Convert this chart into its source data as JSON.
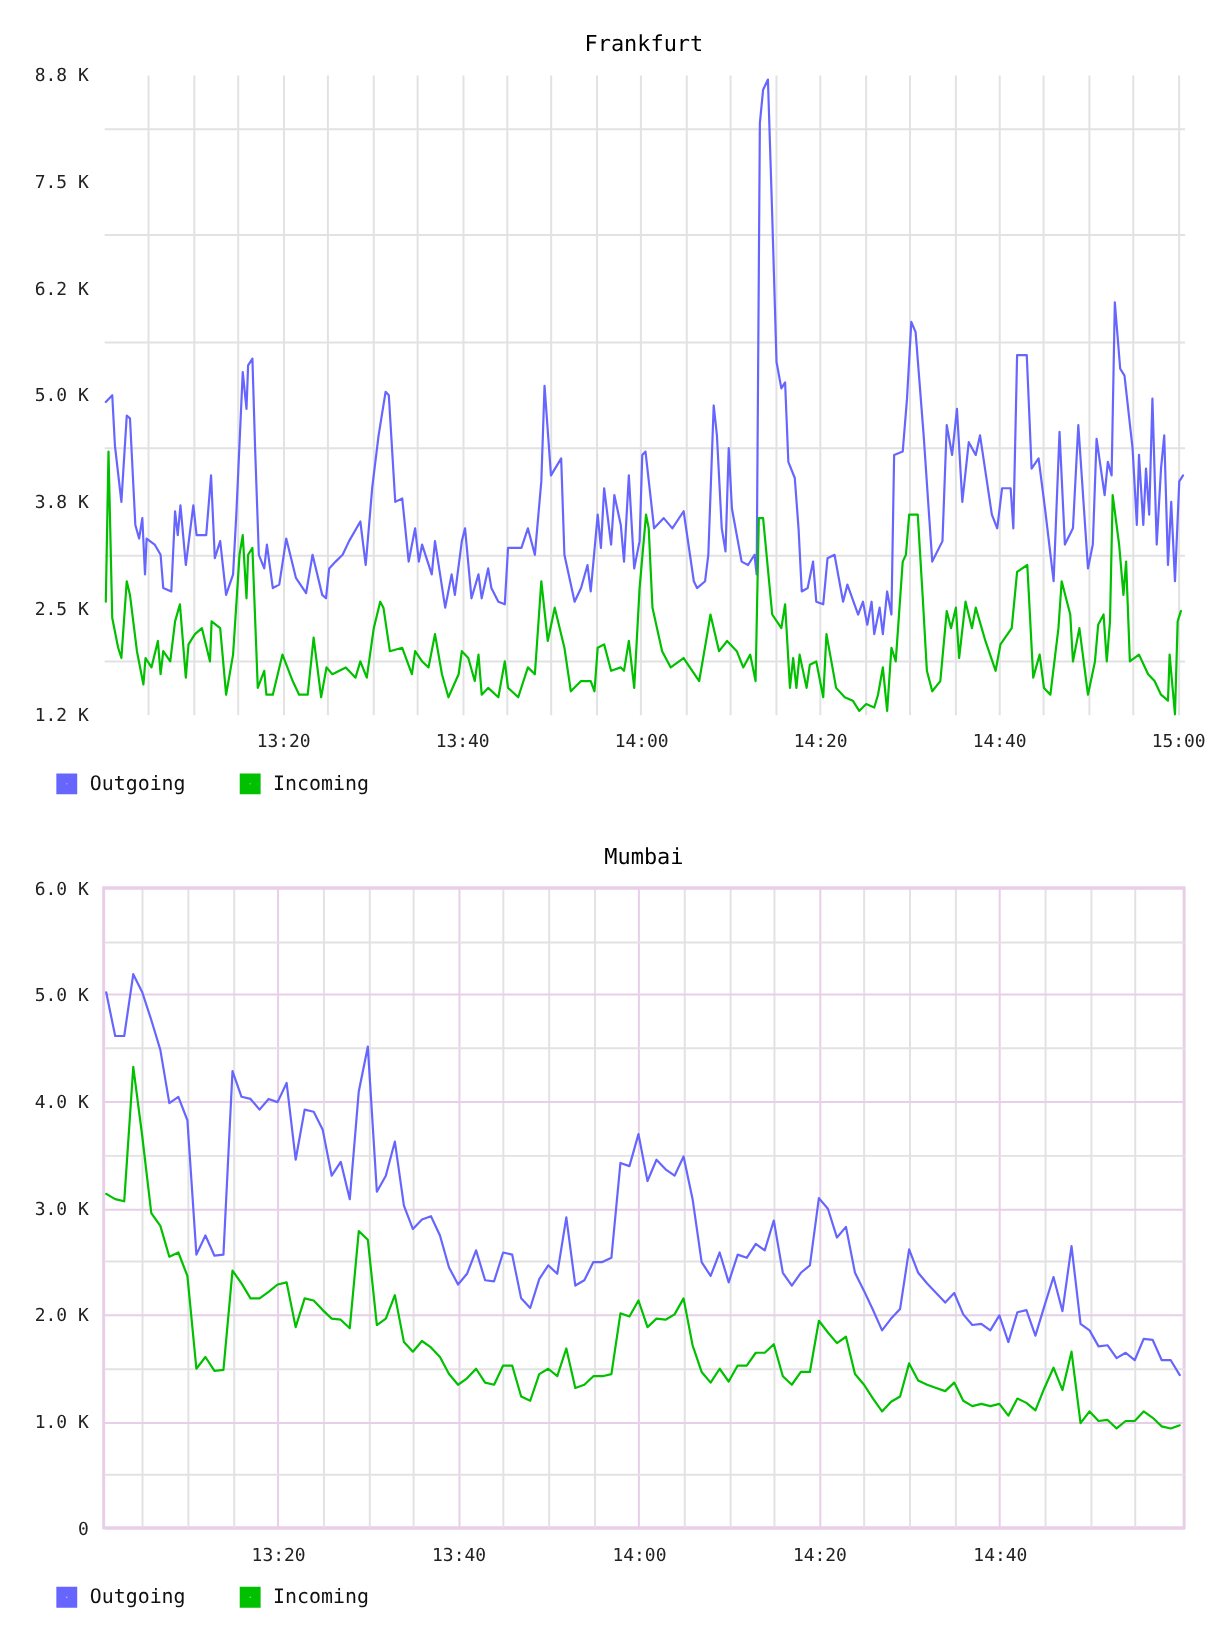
{
  "chart_data": [
    {
      "type": "line",
      "title": "Frankfurt",
      "grid": true,
      "legend": "bottom left",
      "xlim": [
        13.0,
        15.012
      ],
      "ylim": [
        1250,
        8750
      ],
      "xticks": [
        {
          "value": 13.0833,
          "label": null
        },
        {
          "value": 13.1667,
          "label": null
        },
        {
          "value": 13.25,
          "label": null
        },
        {
          "value": 13.3333,
          "label": "13:20"
        },
        {
          "value": 13.4167,
          "label": null
        },
        {
          "value": 13.5,
          "label": null
        },
        {
          "value": 13.5833,
          "label": null
        },
        {
          "value": 13.6667,
          "label": "13:40"
        },
        {
          "value": 13.75,
          "label": null
        },
        {
          "value": 13.8333,
          "label": null
        },
        {
          "value": 13.9167,
          "label": null
        },
        {
          "value": 14,
          "label": "14:00"
        },
        {
          "value": 14.0833,
          "label": null
        },
        {
          "value": 14.1667,
          "label": null
        },
        {
          "value": 14.25,
          "label": null
        },
        {
          "value": 14.3333,
          "label": "14:20"
        },
        {
          "value": 14.4167,
          "label": null
        },
        {
          "value": 14.5,
          "label": null
        },
        {
          "value": 14.5833,
          "label": null
        },
        {
          "value": 14.6667,
          "label": "14:40"
        },
        {
          "value": 14.75,
          "label": null
        },
        {
          "value": 14.8333,
          "label": null
        },
        {
          "value": 14.9167,
          "label": null
        },
        {
          "value": 15,
          "label": "15:00"
        }
      ],
      "yticks": [
        {
          "value": 1250,
          "label": "1.2 K"
        },
        {
          "value": 1875,
          "label": null
        },
        {
          "value": 2500,
          "label": "2.5 K"
        },
        {
          "value": 3125,
          "label": null
        },
        {
          "value": 3750,
          "label": "3.8 K"
        },
        {
          "value": 4375,
          "label": null
        },
        {
          "value": 5000,
          "label": "5.0 K"
        },
        {
          "value": 5625,
          "label": null
        },
        {
          "value": 6250,
          "label": "6.2 K"
        },
        {
          "value": 6875,
          "label": null
        },
        {
          "value": 7500,
          "label": "7.5 K"
        },
        {
          "value": 8125,
          "label": null
        },
        {
          "value": 8750,
          "label": "8.8 K"
        }
      ],
      "series": [
        {
          "name": "Outgoing",
          "color": "#6666ff",
          "x": [
            13.004,
            13.016,
            13.021,
            13.033,
            13.043,
            13.049,
            13.059,
            13.066,
            13.072,
            13.077,
            13.08,
            13.095,
            13.106,
            13.111,
            13.126,
            13.133,
            13.138,
            13.143,
            13.153,
            13.167,
            13.173,
            13.191,
            13.2,
            13.207,
            13.217,
            13.228,
            13.241,
            13.247,
            13.259,
            13.266,
            13.269,
            13.277,
            13.282,
            13.289,
            13.299,
            13.304,
            13.315,
            13.327,
            13.34,
            13.358,
            13.377,
            13.389,
            13.407,
            13.414,
            13.42,
            13.432,
            13.445,
            13.457,
            13.478,
            13.488,
            13.5,
            13.512,
            13.525,
            13.531,
            13.543,
            13.556,
            13.568,
            13.58,
            13.587,
            13.593,
            13.611,
            13.617,
            13.636,
            13.648,
            13.654,
            13.667,
            13.673,
            13.685,
            13.698,
            13.704,
            13.716,
            13.722,
            13.735,
            13.747,
            13.753,
            13.778,
            13.79,
            13.803,
            13.815,
            13.821,
            13.833,
            13.852,
            13.858,
            13.877,
            13.889,
            13.901,
            13.907,
            13.92,
            13.926,
            13.932,
            13.945,
            13.951,
            13.963,
            13.969,
            13.978,
            13.988,
            13.998,
            14.003,
            14.009,
            14.025,
            14.043,
            14.059,
            14.08,
            14.099,
            14.105,
            14.12,
            14.126,
            14.136,
            14.142,
            14.151,
            14.158,
            14.164,
            14.17,
            14.188,
            14.2,
            14.212,
            14.216,
            14.222,
            14.228,
            14.237,
            14.245,
            14.253,
            14.262,
            14.269,
            14.275,
            14.287,
            14.294,
            14.3,
            14.311,
            14.321,
            14.327,
            14.34,
            14.348,
            14.361,
            14.377,
            14.385,
            14.405,
            14.414,
            14.422,
            14.43,
            14.435,
            14.445,
            14.451,
            14.459,
            14.467,
            14.472,
            14.488,
            14.496,
            14.504,
            14.512,
            14.527,
            14.537,
            14.543,
            14.562,
            14.57,
            14.58,
            14.589,
            14.599,
            14.611,
            14.624,
            14.632,
            14.654,
            14.664,
            14.673,
            14.689,
            14.694,
            14.701,
            14.719,
            14.728,
            14.741,
            14.753,
            14.769,
            14.78,
            14.79,
            14.805,
            14.815,
            14.833,
            14.842,
            14.849,
            14.864,
            14.87,
            14.877,
            14.883,
            14.893,
            14.901,
            14.916,
            14.924,
            14.928,
            14.936,
            14.941,
            14.947,
            14.953,
            14.961,
            14.969,
            14.975,
            14.982,
            14.988,
            14.995,
            15.003,
            15.01
          ],
          "values": [
            4910,
            4990,
            4400,
            3740,
            4750,
            4720,
            3470,
            3310,
            3550,
            2890,
            3310,
            3240,
            3120,
            2730,
            2690,
            3630,
            3350,
            3700,
            3000,
            3700,
            3350,
            3350,
            4050,
            3080,
            3280,
            2650,
            2890,
            3590,
            5260,
            4830,
            5340,
            5420,
            4370,
            3120,
            2960,
            3240,
            2730,
            2770,
            3310,
            2850,
            2670,
            3120,
            2650,
            2610,
            2960,
            3040,
            3120,
            3280,
            3510,
            3000,
            3900,
            4520,
            5030,
            4990,
            3740,
            3780,
            3040,
            3430,
            3040,
            3240,
            2890,
            3280,
            2500,
            2890,
            2650,
            3280,
            3430,
            2610,
            2890,
            2610,
            2960,
            2730,
            2570,
            2540,
            3200,
            3200,
            3430,
            3120,
            3980,
            5100,
            4050,
            4250,
            3120,
            2570,
            2730,
            3000,
            2690,
            3590,
            3200,
            3900,
            3240,
            3820,
            3470,
            3040,
            4050,
            2960,
            3280,
            4290,
            4330,
            3430,
            3550,
            3430,
            3630,
            2810,
            2730,
            2810,
            3120,
            4870,
            4520,
            3430,
            3160,
            4370,
            3660,
            3040,
            3000,
            3120,
            2890,
            8180,
            8570,
            8690,
            7090,
            5380,
            5070,
            5140,
            4210,
            4020,
            3430,
            2690,
            2730,
            3040,
            2570,
            2540,
            3080,
            3120,
            2570,
            2770,
            2420,
            2570,
            2300,
            2570,
            2190,
            2500,
            2190,
            2690,
            2420,
            4290,
            4330,
            4950,
            5850,
            5730,
            4520,
            3590,
            3040,
            3280,
            4640,
            4290,
            4830,
            3740,
            4440,
            4290,
            4520,
            3590,
            3430,
            3900,
            3900,
            3430,
            5460,
            5460,
            4130,
            4250,
            3660,
            2810,
            4560,
            3240,
            3430,
            4640,
            2960,
            3240,
            4480,
            3820,
            4210,
            4050,
            6080,
            5300,
            5220,
            4370,
            3470,
            4290,
            3470,
            4130,
            3590,
            4950,
            3240,
            4130,
            4520,
            3000,
            3740,
            2810,
            3980,
            4050
          ]
        },
        {
          "name": "Incoming",
          "color": "#00c000",
          "x": [
            13.004,
            13.009,
            13.016,
            13.027,
            13.033,
            13.043,
            13.049,
            13.062,
            13.074,
            13.078,
            13.089,
            13.101,
            13.106,
            13.111,
            13.124,
            13.133,
            13.142,
            13.153,
            13.158,
            13.17,
            13.183,
            13.198,
            13.201,
            13.217,
            13.228,
            13.241,
            13.253,
            13.259,
            13.266,
            13.269,
            13.277,
            13.287,
            13.299,
            13.303,
            13.315,
            13.333,
            13.352,
            13.364,
            13.38,
            13.391,
            13.405,
            13.415,
            13.426,
            13.451,
            13.469,
            13.478,
            13.49,
            13.503,
            13.515,
            13.521,
            13.533,
            13.556,
            13.574,
            13.58,
            13.593,
            13.605,
            13.617,
            13.63,
            13.642,
            13.661,
            13.667,
            13.679,
            13.691,
            13.698,
            13.704,
            13.716,
            13.735,
            13.747,
            13.753,
            13.772,
            13.79,
            13.803,
            13.815,
            13.827,
            13.84,
            13.858,
            13.87,
            13.889,
            13.907,
            13.914,
            13.92,
            13.932,
            13.945,
            13.963,
            13.969,
            13.978,
            13.988,
            13.998,
            14.01,
            14.015,
            14.022,
            14.04,
            14.056,
            14.08,
            14.109,
            14.124,
            14.13,
            14.146,
            14.161,
            14.179,
            14.191,
            14.204,
            14.214,
            14.22,
            14.228,
            14.245,
            14.262,
            14.269,
            14.278,
            14.284,
            14.29,
            14.296,
            14.309,
            14.315,
            14.327,
            14.34,
            14.346,
            14.364,
            14.38,
            14.395,
            14.407,
            14.42,
            14.435,
            14.442,
            14.451,
            14.459,
            14.467,
            14.475,
            14.488,
            14.494,
            14.5,
            14.516,
            14.525,
            14.533,
            14.543,
            14.558,
            14.57,
            14.578,
            14.587,
            14.593,
            14.605,
            14.617,
            14.624,
            14.642,
            14.661,
            14.67,
            14.691,
            14.701,
            14.72,
            14.731,
            14.743,
            14.751,
            14.763,
            14.778,
            14.784,
            14.8,
            14.805,
            14.817,
            14.833,
            14.846,
            14.852,
            14.862,
            14.868,
            14.874,
            14.879,
            14.891,
            14.899,
            14.904,
            14.911,
            14.928,
            14.945,
            14.957,
            14.969,
            14.982,
            14.985,
            14.995,
            15.0,
            15.006
          ],
          "values": [
            2570,
            4330,
            2380,
            2030,
            1910,
            2810,
            2650,
            1990,
            1600,
            1910,
            1800,
            2110,
            1720,
            1990,
            1870,
            2340,
            2540,
            1680,
            2070,
            2190,
            2260,
            1870,
            2340,
            2260,
            1480,
            1950,
            3120,
            3350,
            2610,
            3120,
            3200,
            1560,
            1760,
            1480,
            1480,
            1950,
            1640,
            1480,
            1480,
            2150,
            1450,
            1800,
            1720,
            1800,
            1680,
            1870,
            1680,
            2260,
            2570,
            2500,
            1990,
            2030,
            1720,
            1990,
            1870,
            1800,
            2190,
            1720,
            1450,
            1720,
            1990,
            1910,
            1640,
            1950,
            1480,
            1560,
            1450,
            1870,
            1560,
            1450,
            1800,
            1720,
            2810,
            2110,
            2500,
            2030,
            1520,
            1640,
            1640,
            1520,
            2030,
            2070,
            1760,
            1800,
            1760,
            2110,
            1560,
            2730,
            3590,
            3430,
            2500,
            1990,
            1800,
            1910,
            1640,
            2190,
            2420,
            1990,
            2110,
            1990,
            1800,
            1950,
            1640,
            3550,
            3550,
            2420,
            2260,
            2540,
            1560,
            1910,
            1560,
            1950,
            1560,
            1830,
            1870,
            1450,
            2190,
            1560,
            1450,
            1410,
            1290,
            1370,
            1330,
            1480,
            1800,
            1290,
            2030,
            1870,
            3040,
            3120,
            3590,
            3590,
            2650,
            1760,
            1520,
            1640,
            2460,
            2260,
            2500,
            1910,
            2570,
            2260,
            2500,
            2110,
            1760,
            2070,
            2260,
            2920,
            3000,
            1680,
            1950,
            1560,
            1480,
            2260,
            2810,
            2420,
            1870,
            2260,
            1480,
            1870,
            2300,
            2420,
            1870,
            2340,
            3820,
            3240,
            2650,
            3040,
            1870,
            1950,
            1720,
            1640,
            1480,
            1410,
            1950,
            1250,
            2340,
            2460
          ]
        }
      ]
    },
    {
      "type": "line",
      "title": "Mumbai",
      "grid": true,
      "legend": "bottom left",
      "xlim": [
        13.012,
        15.008
      ],
      "ylim": [
        0,
        6000
      ],
      "xticks": [
        {
          "value": 13.0833,
          "label": null
        },
        {
          "value": 13.1667,
          "label": null
        },
        {
          "value": 13.25,
          "label": null
        },
        {
          "value": 13.3333,
          "label": "13:20"
        },
        {
          "value": 13.4167,
          "label": null
        },
        {
          "value": 13.5,
          "label": null
        },
        {
          "value": 13.5833,
          "label": null
        },
        {
          "value": 13.6667,
          "label": "13:40"
        },
        {
          "value": 13.75,
          "label": null
        },
        {
          "value": 13.8333,
          "label": null
        },
        {
          "value": 13.9167,
          "label": null
        },
        {
          "value": 14,
          "label": "14:00"
        },
        {
          "value": 14.0833,
          "label": null
        },
        {
          "value": 14.1667,
          "label": null
        },
        {
          "value": 14.25,
          "label": null
        },
        {
          "value": 14.3333,
          "label": "14:20"
        },
        {
          "value": 14.4167,
          "label": null
        },
        {
          "value": 14.5,
          "label": null
        },
        {
          "value": 14.5833,
          "label": null
        },
        {
          "value": 14.6667,
          "label": "14:40"
        },
        {
          "value": 14.75,
          "label": null
        },
        {
          "value": 14.8333,
          "label": null
        },
        {
          "value": 14.9167,
          "label": null
        }
      ],
      "yticks": [
        0,
        {
          "value": 500,
          "label": null
        },
        {
          "value": 1000,
          "label": "1.0 K"
        },
        {
          "value": 1500,
          "label": null
        },
        {
          "value": 2000,
          "label": "2.0 K"
        },
        {
          "value": 2500,
          "label": null
        },
        {
          "value": 3000,
          "label": "3.0 K"
        },
        {
          "value": 3500,
          "label": null
        },
        {
          "value": 4000,
          "label": "4.0 K"
        },
        {
          "value": 4500,
          "label": null
        },
        {
          "value": 5000,
          "label": "5.0 K"
        },
        {
          "value": 5500,
          "label": null
        },
        {
          "value": 6000,
          "label": "6.0 K"
        }
      ],
      "x": [
        13.0167,
        13.0333,
        13.05,
        13.0667,
        13.0833,
        13.1,
        13.1167,
        13.1333,
        13.15,
        13.1667,
        13.1833,
        13.2,
        13.2167,
        13.2333,
        13.25,
        13.2667,
        13.2833,
        13.3,
        13.3167,
        13.3333,
        13.35,
        13.3667,
        13.3833,
        13.4,
        13.4167,
        13.4333,
        13.45,
        13.4667,
        13.4833,
        13.5,
        13.5167,
        13.5333,
        13.55,
        13.5667,
        13.5833,
        13.6,
        13.6167,
        13.6333,
        13.65,
        13.6667,
        13.6833,
        13.7,
        13.7167,
        13.7333,
        13.75,
        13.7667,
        13.7833,
        13.8,
        13.8167,
        13.8333,
        13.85,
        13.8667,
        13.8833,
        13.9,
        13.9167,
        13.9333,
        13.95,
        13.9667,
        13.9833,
        14.0,
        14.0167,
        14.0333,
        14.05,
        14.0667,
        14.0833,
        14.1,
        14.1167,
        14.1333,
        14.15,
        14.1667,
        14.1833,
        14.2,
        14.2167,
        14.2333,
        14.25,
        14.2667,
        14.2833,
        14.3,
        14.3167,
        14.3333,
        14.35,
        14.3667,
        14.3833,
        14.4,
        14.4167,
        14.4333,
        14.45,
        14.4667,
        14.4833,
        14.5,
        14.5167,
        14.5333,
        14.55,
        14.5667,
        14.5833,
        14.6,
        14.6167,
        14.6333,
        14.65,
        14.6667,
        14.6833,
        14.7,
        14.7167,
        14.7333,
        14.75,
        14.7667,
        14.7833,
        14.8,
        14.8167,
        14.8333,
        14.85,
        14.8667,
        14.8833,
        14.9,
        14.9167,
        14.9333,
        14.95,
        14.9667,
        14.9833,
        15.0
      ],
      "series": [
        {
          "name": "Outgoing",
          "color": "#6666ff",
          "values": [
            5020,
            4610,
            4610,
            5190,
            5020,
            4760,
            4480,
            3980,
            4040,
            3820,
            2560,
            2740,
            2550,
            2560,
            4280,
            4040,
            4020,
            3920,
            4020,
            3990,
            4170,
            3450,
            3920,
            3900,
            3730,
            3300,
            3430,
            3080,
            4090,
            4510,
            3150,
            3300,
            3620,
            3020,
            2800,
            2890,
            2920,
            2740,
            2440,
            2280,
            2380,
            2600,
            2320,
            2310,
            2580,
            2560,
            2150,
            2060,
            2330,
            2460,
            2380,
            2910,
            2270,
            2320,
            2490,
            2490,
            2530,
            3420,
            3390,
            3690,
            3250,
            3450,
            3360,
            3300,
            3480,
            3080,
            2490,
            2360,
            2580,
            2300,
            2560,
            2530,
            2660,
            2600,
            2880,
            2390,
            2270,
            2390,
            2460,
            3090,
            2990,
            2720,
            2820,
            2390,
            2220,
            2040,
            1850,
            1960,
            2050,
            2610,
            2390,
            2290,
            2200,
            2110,
            2200,
            2000,
            1900,
            1910,
            1850,
            1990,
            1740,
            2020,
            2040,
            1800,
            2080,
            2350,
            2030,
            2640,
            1910,
            1850,
            1700,
            1710,
            1590,
            1640,
            1570,
            1770,
            1760,
            1570,
            1570,
            1430
          ]
        },
        {
          "name": "Incoming",
          "color": "#00c000",
          "values": [
            3130,
            3080,
            3060,
            4320,
            3670,
            2950,
            2830,
            2540,
            2580,
            2360,
            1490,
            1600,
            1470,
            1480,
            2410,
            2290,
            2150,
            2150,
            2210,
            2280,
            2300,
            1880,
            2150,
            2130,
            2040,
            1960,
            1950,
            1870,
            2780,
            2700,
            1900,
            1960,
            2180,
            1740,
            1650,
            1750,
            1690,
            1600,
            1440,
            1340,
            1400,
            1490,
            1360,
            1340,
            1520,
            1520,
            1230,
            1190,
            1440,
            1490,
            1420,
            1680,
            1310,
            1340,
            1420,
            1420,
            1440,
            2010,
            1980,
            2130,
            1880,
            1960,
            1950,
            2000,
            2150,
            1710,
            1460,
            1360,
            1490,
            1370,
            1520,
            1520,
            1640,
            1640,
            1720,
            1420,
            1340,
            1460,
            1460,
            1940,
            1830,
            1730,
            1790,
            1440,
            1340,
            1210,
            1090,
            1180,
            1230,
            1540,
            1380,
            1340,
            1310,
            1280,
            1360,
            1190,
            1140,
            1160,
            1140,
            1160,
            1050,
            1210,
            1170,
            1100,
            1310,
            1500,
            1290,
            1650,
            980,
            1090,
            1000,
            1010,
            930,
            1000,
            1000,
            1090,
            1030,
            950,
            930,
            960
          ]
        }
      ]
    }
  ]
}
